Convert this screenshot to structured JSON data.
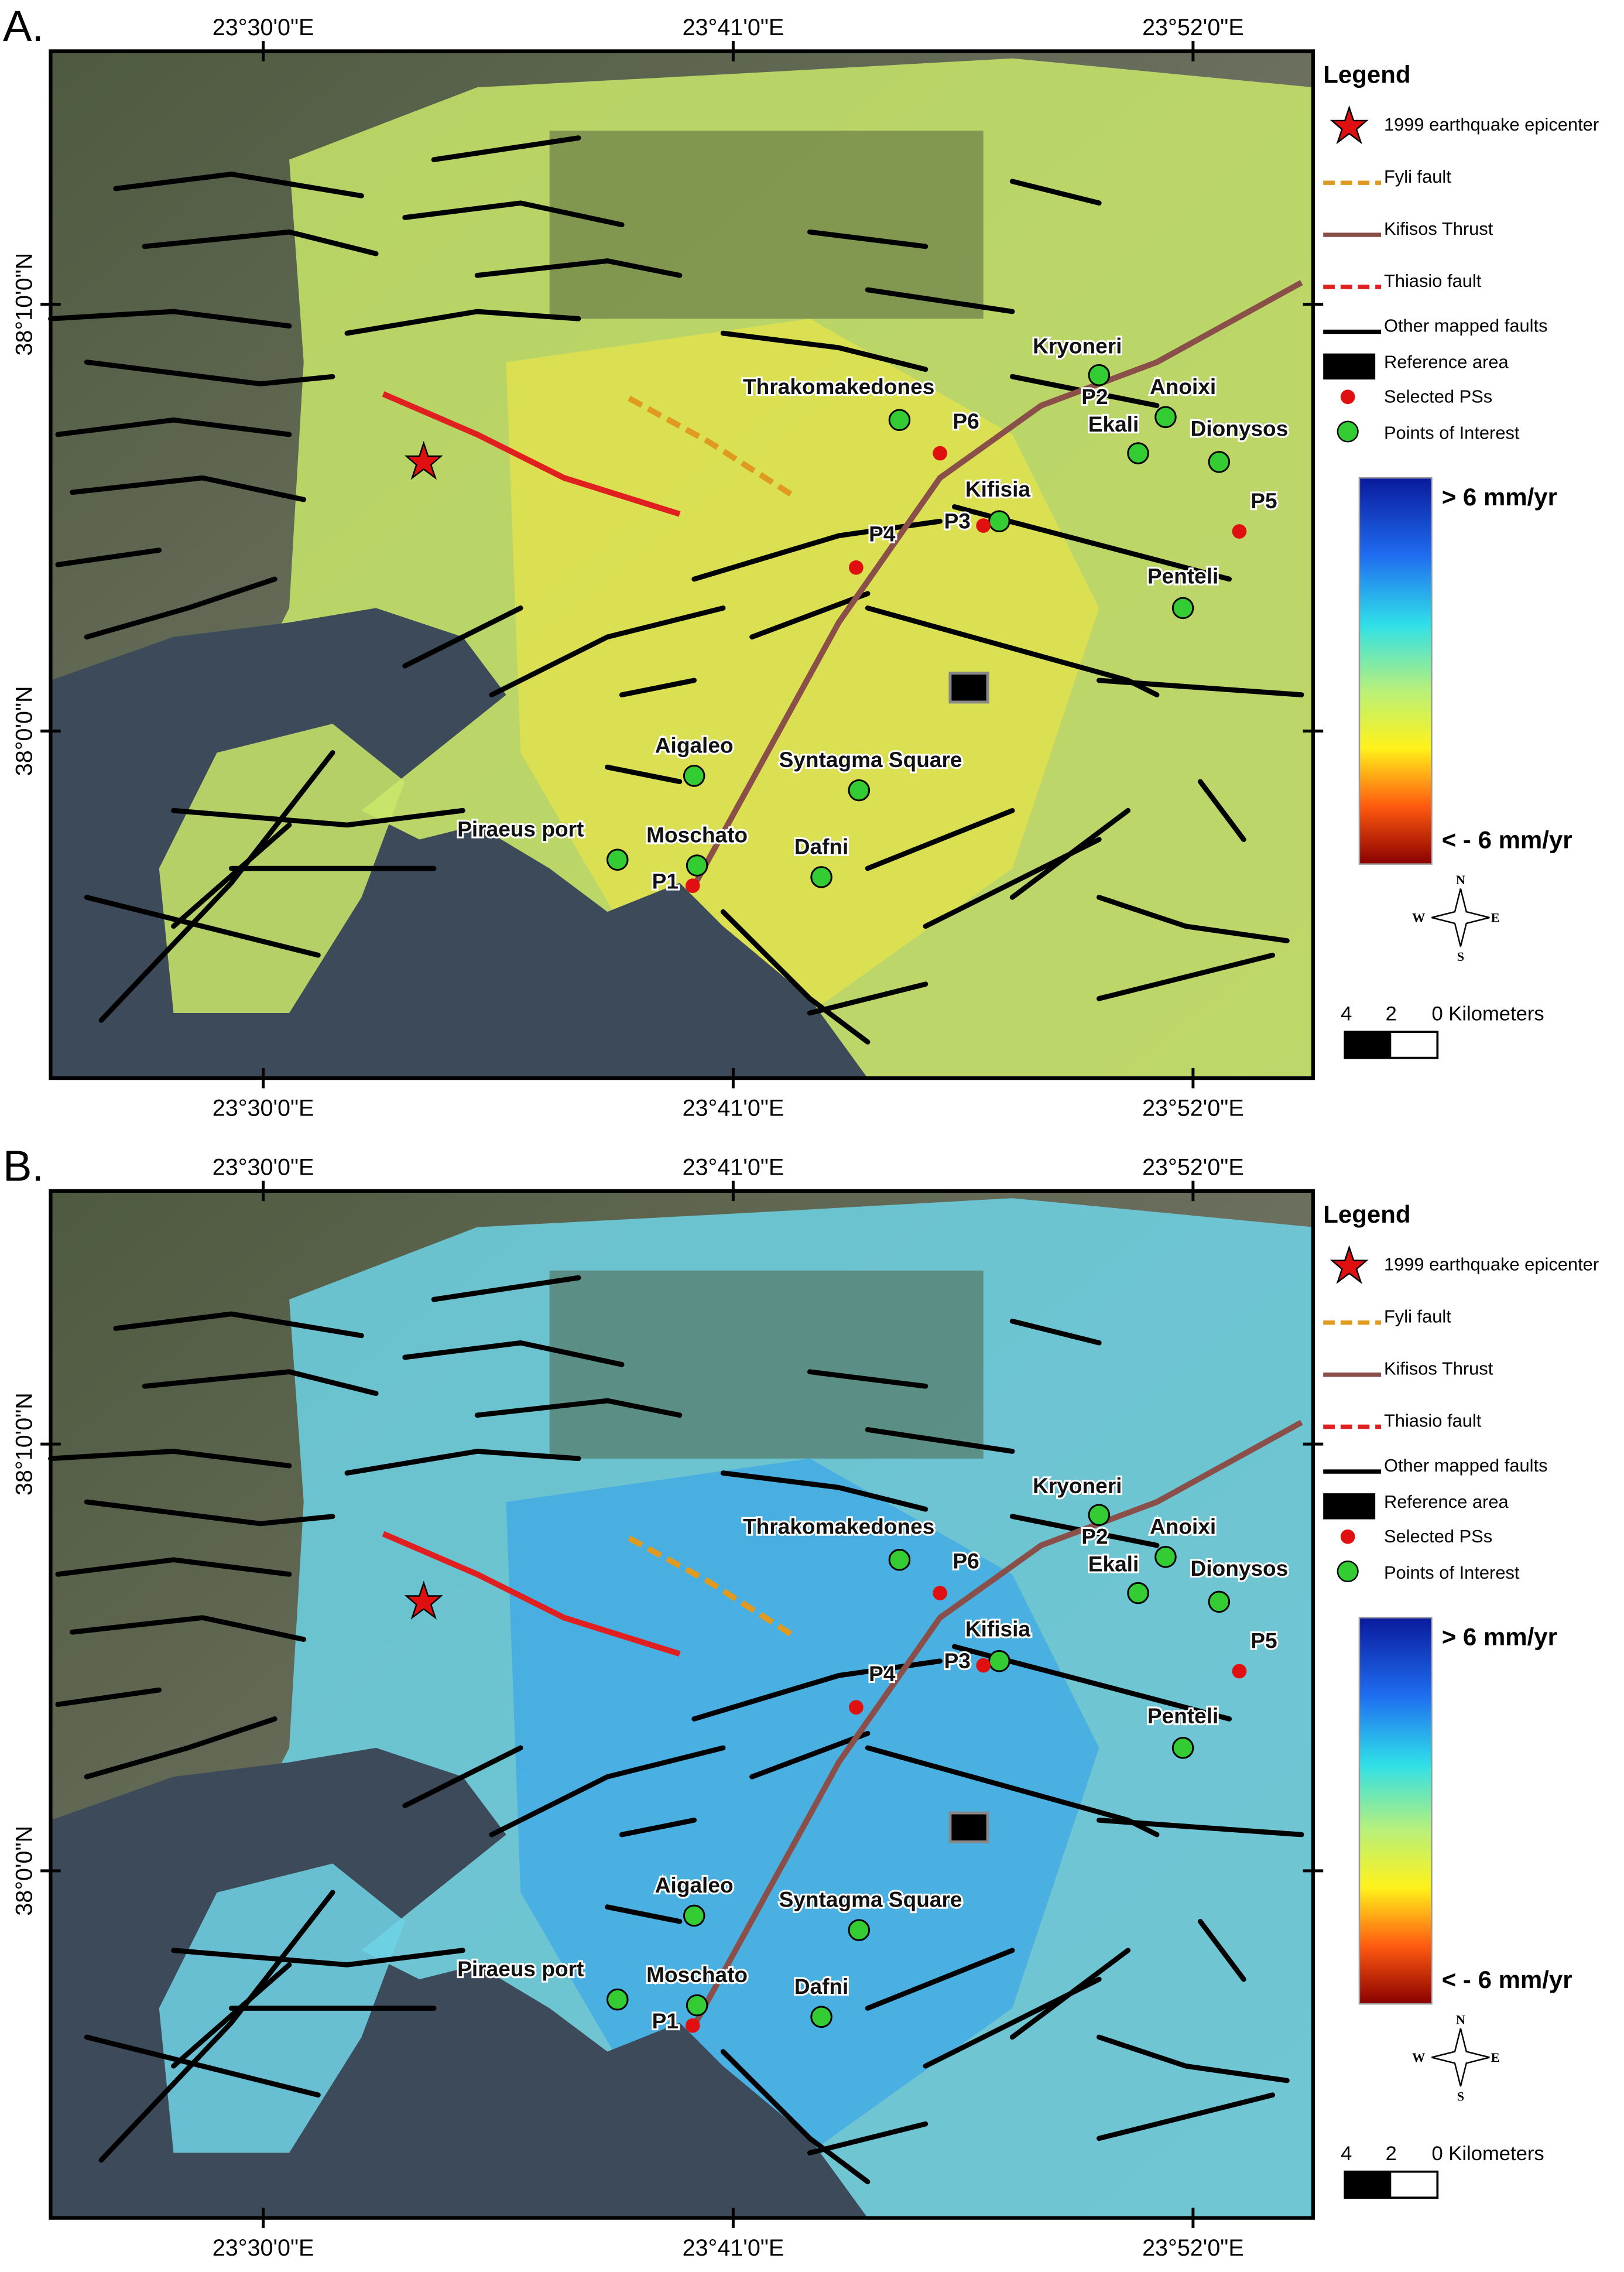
{
  "panels": [
    {
      "label": "A."
    },
    {
      "label": "B."
    }
  ],
  "map": {
    "x_labels": [
      "23°30'0\"E",
      "23°41'0\"E",
      "23°52'0\"E"
    ],
    "y_labels": [
      "38°10'0\"N",
      "38°0'0\"N"
    ],
    "legend": {
      "title": "Legend",
      "items": [
        "1999 earthquake epicenter",
        "Fyli fault",
        "Kifisos Thrust",
        "Thiasio fault",
        "Other mapped faults",
        "Reference area",
        "Selected PSs",
        "Points of Interest"
      ]
    },
    "colorbar": {
      "top": "> 6 mm/yr",
      "bottom": "< - 6 mm/yr"
    },
    "compass": [
      "N",
      "S",
      "W",
      "E"
    ],
    "scale": [
      "4",
      "2",
      "0 Kilometers"
    ],
    "places": [
      "Thrakomakedones",
      "P6",
      "Kryoneri",
      "P2",
      "Anoixi",
      "Ekali",
      "Dionysos",
      "Kifisia",
      "P3",
      "P5",
      "P4",
      "Penteli",
      "Aigaleo",
      "Syntagma Square",
      "Piraeus port",
      "Moschato",
      "P1",
      "Dafni"
    ]
  }
}
